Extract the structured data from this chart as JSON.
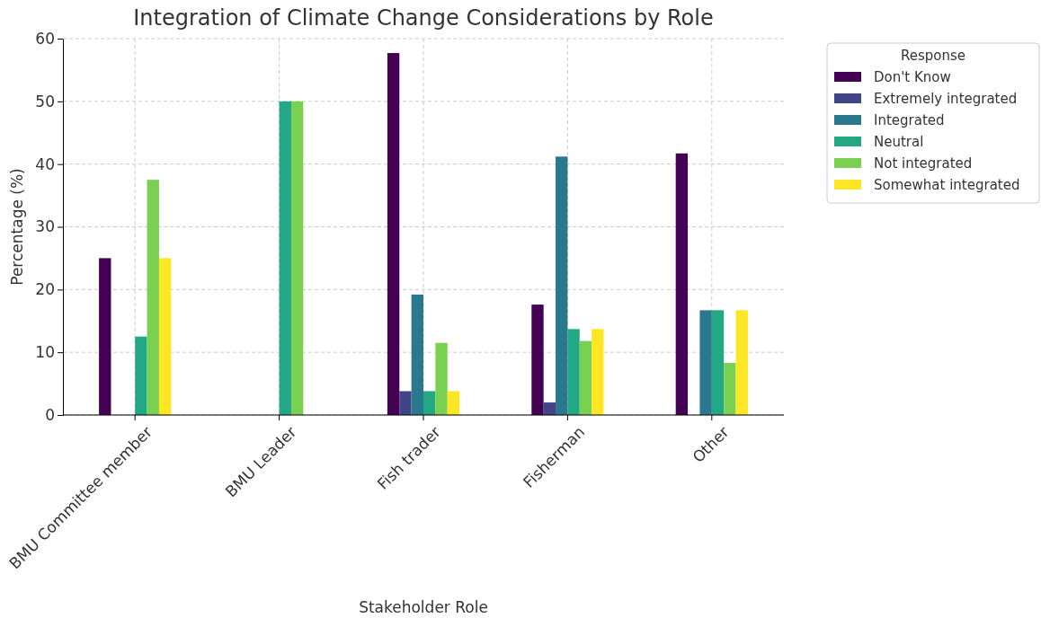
{
  "chart_data": {
    "type": "bar",
    "title": "Integration of Climate Change Considerations by Role",
    "xlabel": "Stakeholder Role",
    "ylabel": "Percentage (%)",
    "legend_title": "Response",
    "categories": [
      "BMU Committee member",
      "BMU Leader",
      "Fish trader",
      "Fisherman",
      "Other"
    ],
    "series": [
      {
        "name": "Don't Know",
        "color": "#440154",
        "values": [
          25,
          0,
          57.7,
          17.6,
          41.7
        ]
      },
      {
        "name": "Extremely integrated",
        "color": "#414487",
        "values": [
          0,
          0,
          3.8,
          2.0,
          0
        ]
      },
      {
        "name": "Integrated",
        "color": "#2a788e",
        "values": [
          0,
          0,
          19.2,
          41.2,
          16.7
        ]
      },
      {
        "name": "Neutral",
        "color": "#22a884",
        "values": [
          12.5,
          50,
          3.8,
          13.7,
          16.7
        ]
      },
      {
        "name": "Not integrated",
        "color": "#7ad151",
        "values": [
          37.5,
          50,
          11.5,
          11.8,
          8.3
        ]
      },
      {
        "name": "Somewhat integrated",
        "color": "#fde725",
        "values": [
          25,
          0,
          3.8,
          13.7,
          16.7
        ]
      }
    ],
    "ylim": [
      0,
      60
    ],
    "yticks": [
      0,
      10,
      20,
      30,
      40,
      50,
      60
    ],
    "grid": true,
    "legend": "top right"
  }
}
